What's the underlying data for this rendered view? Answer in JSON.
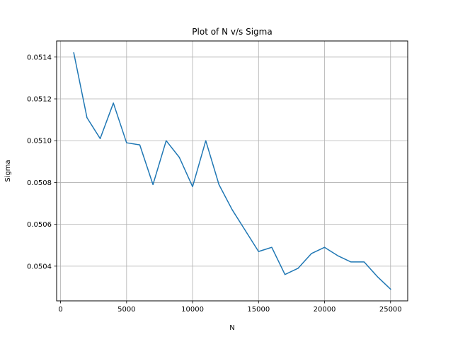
{
  "chart_data": {
    "type": "line",
    "title": "Plot of N v/s Sigma",
    "xlabel": "N",
    "ylabel": "Sigma",
    "x": [
      1000,
      2000,
      3000,
      4000,
      5000,
      6000,
      7000,
      8000,
      9000,
      10000,
      11000,
      12000,
      13000,
      14000,
      15000,
      16000,
      17000,
      18000,
      19000,
      20000,
      21000,
      22000,
      23000,
      24000,
      25000
    ],
    "series": [
      {
        "color": "#1f77b4",
        "values": [
          0.05142,
          0.05111,
          0.05101,
          0.05118,
          0.05099,
          0.05098,
          0.05079,
          0.051,
          0.05092,
          0.05078,
          0.051,
          0.05079,
          0.05067,
          0.05057,
          0.05047,
          0.05049,
          0.05036,
          0.05039,
          0.05046,
          0.05049,
          0.05045,
          0.05042,
          0.05042,
          0.05035,
          0.05029
        ]
      }
    ],
    "xlim": [
      -300,
      26300
    ],
    "ylim": [
      0.050234,
      0.051477
    ],
    "xticks": [
      0,
      5000,
      10000,
      15000,
      20000,
      25000
    ],
    "xtick_labels": [
      "0",
      "5000",
      "10000",
      "15000",
      "20000",
      "25000"
    ],
    "yticks": [
      0.0504,
      0.0506,
      0.0508,
      0.051,
      0.0512,
      0.0514
    ],
    "ytick_labels": [
      "0.0504",
      "0.0506",
      "0.0508",
      "0.0510",
      "0.0512",
      "0.0514"
    ],
    "grid": true,
    "legend": false
  }
}
